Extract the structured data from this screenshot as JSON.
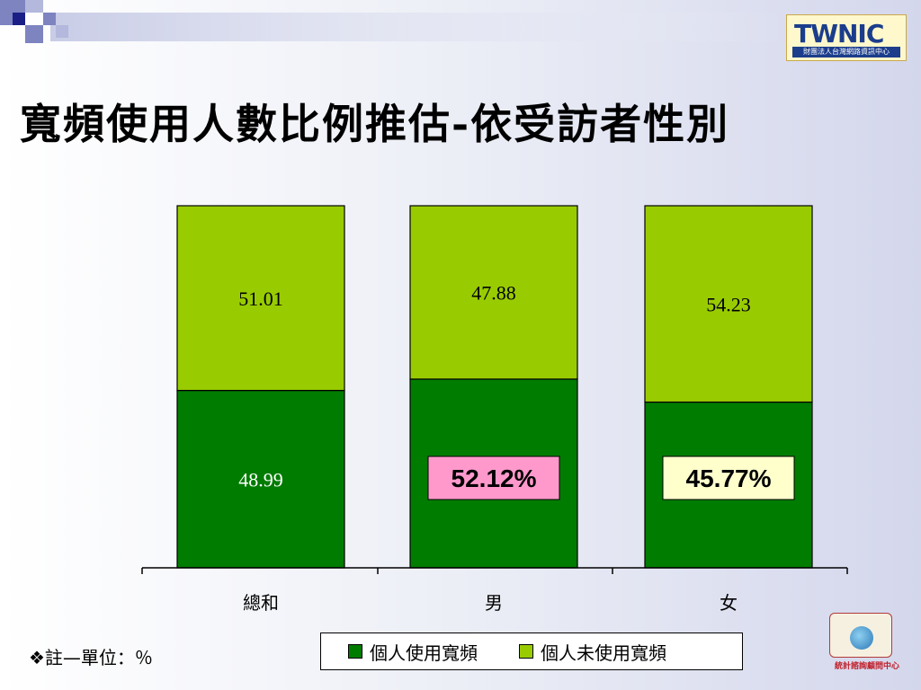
{
  "title": "寬頻使用人數比例推估-依受訪者性別",
  "logo_top": {
    "word": "TWNIC",
    "subtitle": "財團法人台灣網路資訊中心"
  },
  "logo_bottom": {
    "caption": "統計諮詢顧問中心"
  },
  "note": "❖註—單位：％",
  "legend": [
    {
      "label": "個人使用寬頻",
      "color": "#007c00"
    },
    {
      "label": "個人未使用寬頻",
      "color": "#99cc00"
    }
  ],
  "callouts": [
    {
      "category": "男",
      "text": "52.12%",
      "bg": "#ff99cc"
    },
    {
      "category": "女",
      "text": "45.77%",
      "bg": "#ffffcc"
    }
  ],
  "chart_data": {
    "type": "bar",
    "stacked": true,
    "categories": [
      "總和",
      "男",
      "女"
    ],
    "series": [
      {
        "name": "個人使用寬頻",
        "values": [
          48.99,
          52.12,
          45.77
        ],
        "color": "#007c00"
      },
      {
        "name": "個人未使用寬頻",
        "values": [
          51.01,
          47.88,
          54.23
        ],
        "color": "#99cc00"
      }
    ],
    "data_labels": {
      "個人使用寬頻": [
        "48.99",
        "",
        ""
      ],
      "個人未使用寬頻": [
        "51.01",
        "47.88",
        "54.23"
      ]
    },
    "ylim": [
      0,
      100
    ],
    "legend_position": "bottom",
    "grid": false
  }
}
